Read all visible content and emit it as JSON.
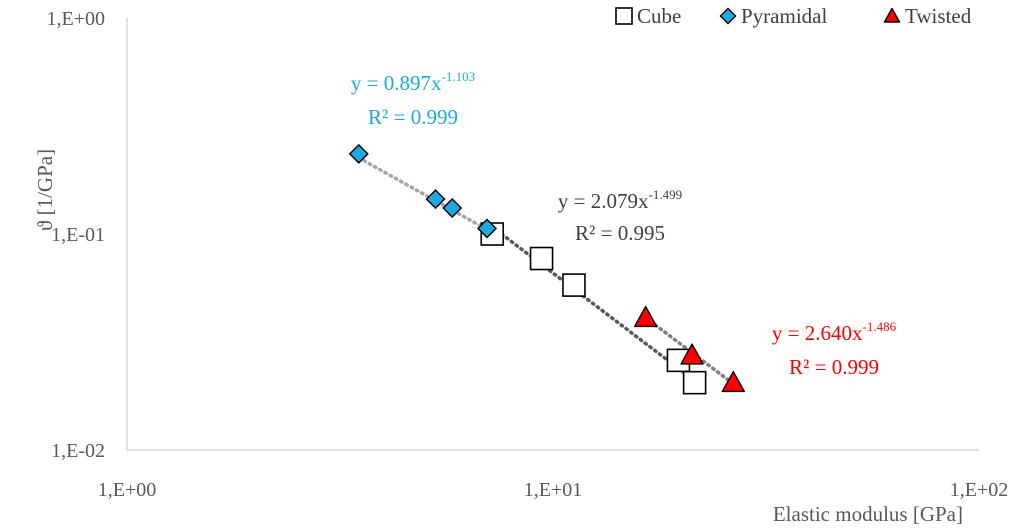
{
  "chart_data": {
    "type": "scatter",
    "x_scale": "log",
    "y_scale": "log",
    "xlim": [
      1,
      100
    ],
    "ylim": [
      0.01,
      1
    ],
    "grid": false,
    "legend_position": "top-right",
    "xlabel": "Elastic modulus [GPa]",
    "ylabel": "ϑ [1/GPa]",
    "x_ticks": [
      {
        "value": 1,
        "label": "1,E+00"
      },
      {
        "value": 10,
        "label": "1,E+01"
      },
      {
        "value": 100,
        "label": "1,E+02"
      }
    ],
    "y_ticks": [
      {
        "value": 1,
        "label": "1,E+00"
      },
      {
        "value": 0.1,
        "label": "1,E-01"
      },
      {
        "value": 0.01,
        "label": "1,E-02"
      }
    ],
    "series": [
      {
        "name": "Cube",
        "marker": "square",
        "color": "#ffffff",
        "stroke": "#000000",
        "trend_color": "#595959",
        "trend": {
          "a": 2.079,
          "b": -1.499,
          "x_range": [
            7.2,
            21.5
          ]
        },
        "equation": {
          "y_prefix": "y = 2.079x",
          "exponent": "-1.499",
          "r2": "R² = 0.995",
          "color": "#404040"
        },
        "points": [
          {
            "x": 7.2,
            "y": 0.1
          },
          {
            "x": 9.4,
            "y": 0.077
          },
          {
            "x": 11.2,
            "y": 0.058
          },
          {
            "x": 19.7,
            "y": 0.026
          },
          {
            "x": 21.5,
            "y": 0.0205
          }
        ]
      },
      {
        "name": "Pyramidal",
        "marker": "diamond",
        "color": "#1fa9e1",
        "stroke": "#000000",
        "trend_color": "#a6a6a6",
        "trend": {
          "a": 0.897,
          "b": -1.103,
          "x_range": [
            3.5,
            7.0
          ]
        },
        "equation": {
          "y_prefix": "y = 0.897x",
          "exponent": "-1.103",
          "r2": "R² = 0.999",
          "color": "#1fa9e1"
        },
        "points": [
          {
            "x": 3.5,
            "y": 0.235
          },
          {
            "x": 5.3,
            "y": 0.145
          },
          {
            "x": 5.8,
            "y": 0.132
          },
          {
            "x": 7.0,
            "y": 0.106
          }
        ]
      },
      {
        "name": "Twisted",
        "marker": "triangle",
        "color": "#ff0000",
        "stroke": "#000000",
        "trend_color": "#7f7f7f",
        "trend": {
          "a": 2.64,
          "b": -1.486,
          "x_range": [
            16.5,
            26.5
          ]
        },
        "equation": {
          "y_prefix": "y = 2.640x",
          "exponent": "-1.486",
          "r2": "R² = 0.999",
          "color": "#ff0000"
        },
        "points": [
          {
            "x": 16.5,
            "y": 0.041
          },
          {
            "x": 21.2,
            "y": 0.0275
          },
          {
            "x": 26.5,
            "y": 0.0205
          }
        ]
      }
    ]
  },
  "colors": {
    "axis": "#d9d9d9",
    "text": "#595959"
  }
}
